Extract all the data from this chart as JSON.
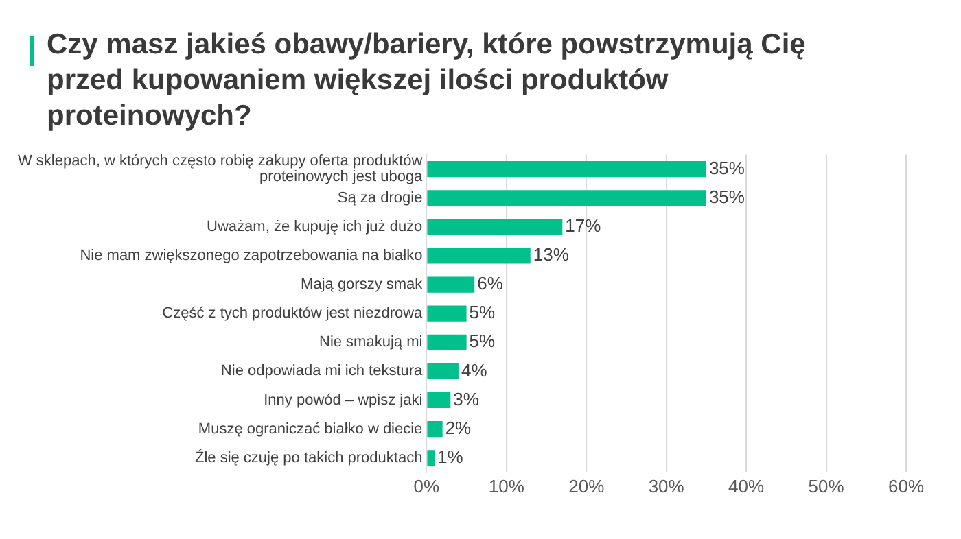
{
  "chart_data": {
    "type": "bar",
    "orientation": "horizontal",
    "title": "Czy masz jakieś obawy/bariery, które powstrzymują Cię przed kupowaniem większej ilości produktów proteinowych?",
    "categories": [
      "W sklepach, w których często robię zakupy oferta produktów proteinowych jest uboga",
      "Są za drogie",
      "Uważam, że kupuję ich już dużo",
      "Nie mam zwiększonego zapotrzebowania na białko",
      "Mają gorszy smak",
      "Część z tych produktów jest niezdrowa",
      "Nie smakują mi",
      "Nie odpowiada mi ich tekstura",
      "Inny powód – wpisz jaki",
      "Muszę ograniczać białko w diecie",
      "Źle się czuję po takich produktach"
    ],
    "values": [
      35,
      35,
      17,
      13,
      6,
      5,
      5,
      4,
      3,
      2,
      1
    ],
    "value_labels": [
      "35%",
      "35%",
      "17%",
      "13%",
      "6%",
      "5%",
      "5%",
      "4%",
      "3%",
      "2%",
      "1%"
    ],
    "color": "#00c08b",
    "xlim": [
      0,
      60
    ],
    "xticks": [
      {
        "value": 0,
        "label": "0%"
      },
      {
        "value": 10,
        "label": "10%"
      },
      {
        "value": 20,
        "label": "20%"
      },
      {
        "value": 30,
        "label": "30%"
      },
      {
        "value": 40,
        "label": "40%"
      },
      {
        "value": 50,
        "label": "50%"
      },
      {
        "value": 60,
        "label": "60%"
      }
    ],
    "grid": "x"
  }
}
